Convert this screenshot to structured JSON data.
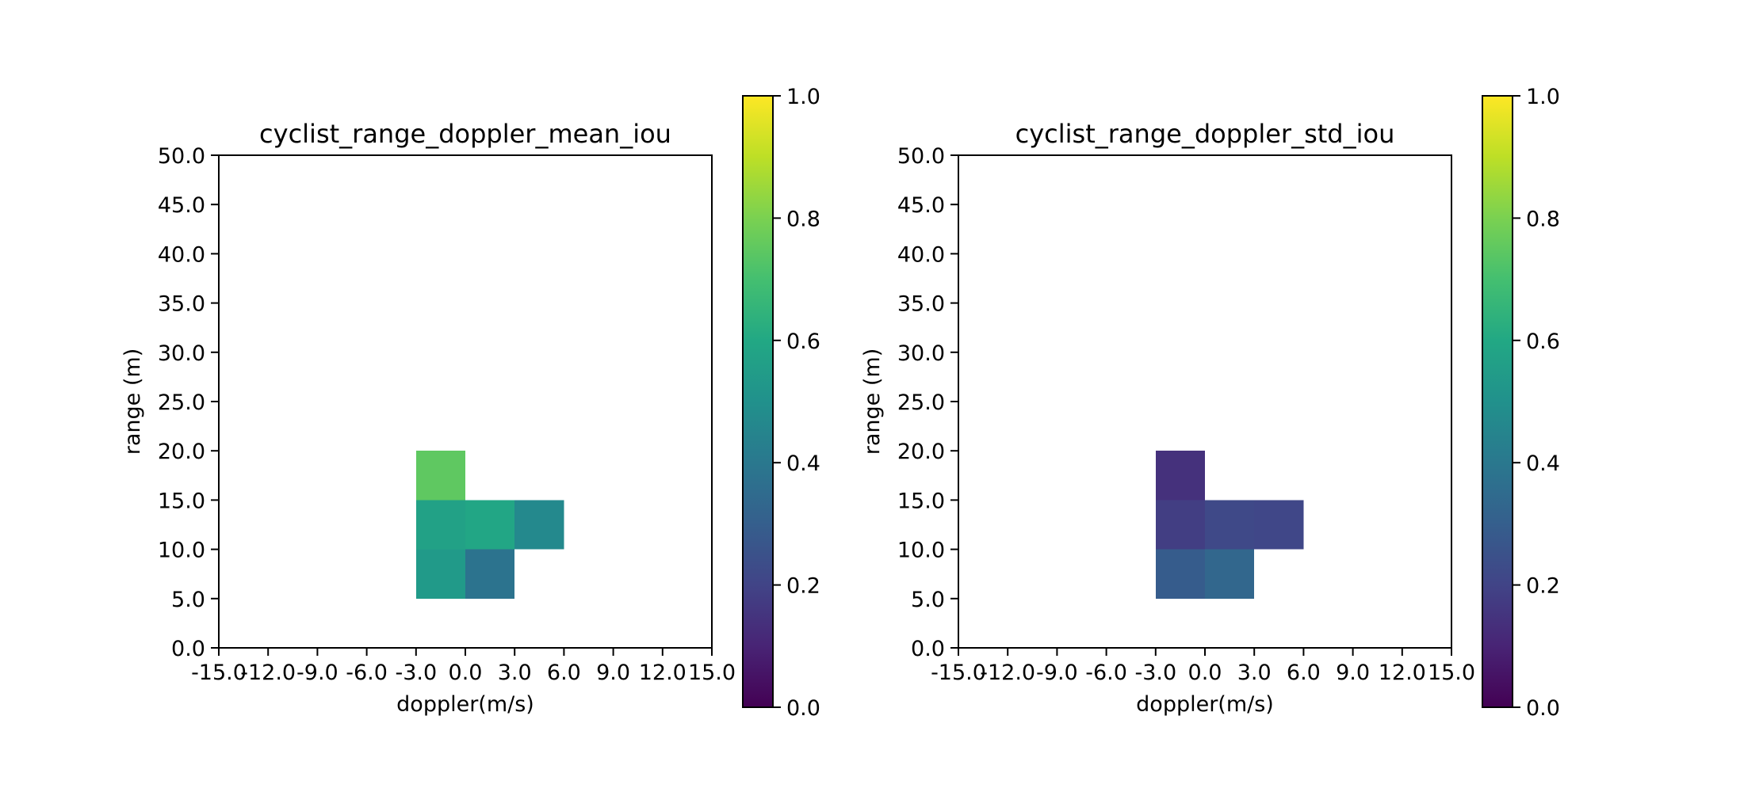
{
  "chart_data": [
    {
      "type": "heatmap",
      "title": "cyclist_range_doppler_mean_iou",
      "xlabel": "doppler(m/s)",
      "ylabel": "range (m)",
      "x_ticks": [
        "-15.0",
        "-12.0",
        "-9.0",
        "-6.0",
        "-3.0",
        "0.0",
        "3.0",
        "6.0",
        "9.0",
        "12.0",
        "15.0"
      ],
      "y_ticks": [
        "0.0",
        "5.0",
        "10.0",
        "15.0",
        "20.0",
        "25.0",
        "30.0",
        "35.0",
        "40.0",
        "45.0",
        "50.0"
      ],
      "xlim": [
        -15,
        15
      ],
      "ylim": [
        0,
        50
      ],
      "cells": [
        {
          "x0": -3,
          "x1": 0,
          "y0": 15,
          "y1": 20,
          "value": 0.75
        },
        {
          "x0": -3,
          "x1": 0,
          "y0": 10,
          "y1": 15,
          "value": 0.57
        },
        {
          "x0": 0,
          "x1": 3,
          "y0": 10,
          "y1": 15,
          "value": 0.59
        },
        {
          "x0": 3,
          "x1": 6,
          "y0": 10,
          "y1": 15,
          "value": 0.47
        },
        {
          "x0": -3,
          "x1": 0,
          "y0": 5,
          "y1": 10,
          "value": 0.54
        },
        {
          "x0": 0,
          "x1": 3,
          "y0": 5,
          "y1": 10,
          "value": 0.38
        }
      ],
      "colorbar": {
        "colormap": "viridis",
        "min": 0.0,
        "max": 1.0,
        "ticks": [
          "0.0",
          "0.2",
          "0.4",
          "0.6",
          "0.8",
          "1.0"
        ]
      }
    },
    {
      "type": "heatmap",
      "title": "cyclist_range_doppler_std_iou",
      "xlabel": "doppler(m/s)",
      "ylabel": "range (m)",
      "x_ticks": [
        "-15.0",
        "-12.0",
        "-9.0",
        "-6.0",
        "-3.0",
        "0.0",
        "3.0",
        "6.0",
        "9.0",
        "12.0",
        "15.0"
      ],
      "y_ticks": [
        "0.0",
        "5.0",
        "10.0",
        "15.0",
        "20.0",
        "25.0",
        "30.0",
        "35.0",
        "40.0",
        "45.0",
        "50.0"
      ],
      "xlim": [
        -15,
        15
      ],
      "ylim": [
        0,
        50
      ],
      "cells": [
        {
          "x0": -3,
          "x1": 0,
          "y0": 15,
          "y1": 20,
          "value": 0.14
        },
        {
          "x0": -3,
          "x1": 0,
          "y0": 10,
          "y1": 15,
          "value": 0.18
        },
        {
          "x0": 0,
          "x1": 3,
          "y0": 10,
          "y1": 15,
          "value": 0.22
        },
        {
          "x0": 3,
          "x1": 6,
          "y0": 10,
          "y1": 15,
          "value": 0.21
        },
        {
          "x0": -3,
          "x1": 0,
          "y0": 5,
          "y1": 10,
          "value": 0.29
        },
        {
          "x0": 0,
          "x1": 3,
          "y0": 5,
          "y1": 10,
          "value": 0.33
        }
      ],
      "colorbar": {
        "colormap": "viridis",
        "min": 0.0,
        "max": 1.0,
        "ticks": [
          "0.0",
          "0.2",
          "0.4",
          "0.6",
          "0.8",
          "1.0"
        ]
      }
    }
  ]
}
